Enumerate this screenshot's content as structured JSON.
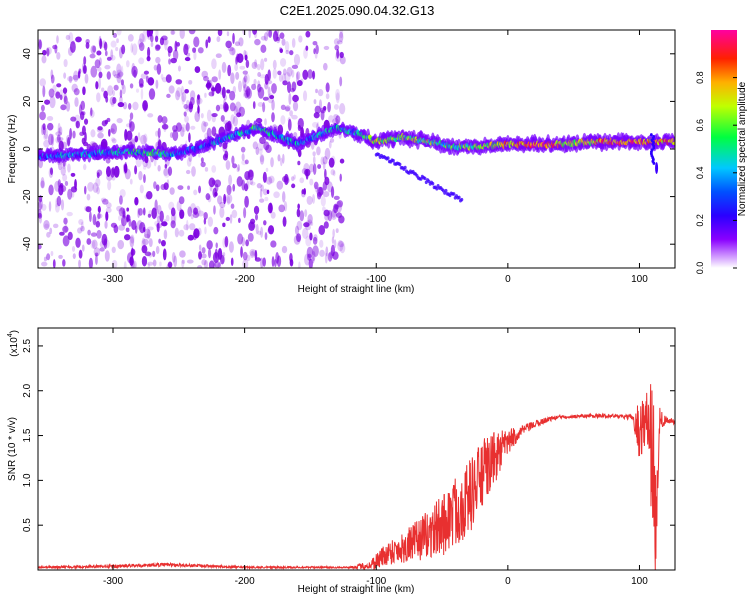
{
  "title": "C2E1.2025.090.04.32.G13",
  "colors": {
    "signal": "#7b00e0",
    "snr_line": "#e83030",
    "axis": "#000000"
  },
  "chart_data": [
    {
      "type": "heatmap",
      "xlabel": "Height of straight line (km)",
      "ylabel": "Frequency (Hz)",
      "xlim": [
        -357,
        127
      ],
      "ylim": [
        -50,
        50
      ],
      "xticks": [
        -300,
        -200,
        -100,
        0,
        100
      ],
      "xtick_labels": [
        "-300",
        "-200",
        "-100",
        "0",
        "100"
      ],
      "yticks": [
        -40,
        -20,
        0,
        20,
        40
      ],
      "ytick_labels": [
        "-40",
        "-20",
        "0",
        "20",
        "40"
      ],
      "colorbar": {
        "label": "Normalized spectral amplitude",
        "range": [
          0,
          1
        ],
        "ticks": [
          0.0,
          0.2,
          0.4,
          0.6,
          0.8
        ],
        "tick_labels": [
          "0.0",
          "0.2",
          "0.4",
          "0.6",
          "0.8"
        ],
        "colormap": "rainbow"
      },
      "noise_region_km": [
        -357,
        -125
      ],
      "signal_centerline": [
        {
          "x": -355,
          "y": -3,
          "amp": 0.3
        },
        {
          "x": -320,
          "y": -2,
          "amp": 0.35
        },
        {
          "x": -290,
          "y": -1,
          "amp": 0.45
        },
        {
          "x": -260,
          "y": -2,
          "amp": 0.45
        },
        {
          "x": -250,
          "y": -2,
          "amp": 0.25
        },
        {
          "x": -190,
          "y": 9,
          "amp": 0.45
        },
        {
          "x": -160,
          "y": 2,
          "amp": 0.35
        },
        {
          "x": -130,
          "y": 9,
          "amp": 0.35
        },
        {
          "x": -110,
          "y": 6,
          "amp": 0.45
        },
        {
          "x": -100,
          "y": 3,
          "amp": 0.65
        },
        {
          "x": -80,
          "y": 5,
          "amp": 0.55
        },
        {
          "x": -60,
          "y": 3,
          "amp": 0.6
        },
        {
          "x": -50,
          "y": 2,
          "amp": 0.5
        },
        {
          "x": -40,
          "y": 1,
          "amp": 0.55
        },
        {
          "x": -20,
          "y": 1,
          "amp": 0.6
        },
        {
          "x": 0,
          "y": 2,
          "amp": 0.75
        },
        {
          "x": 20,
          "y": 2,
          "amp": 0.9
        },
        {
          "x": 40,
          "y": 2,
          "amp": 0.75
        },
        {
          "x": 60,
          "y": 3,
          "amp": 0.65
        },
        {
          "x": 80,
          "y": 3,
          "amp": 0.85
        },
        {
          "x": 100,
          "y": 3,
          "amp": 0.8
        },
        {
          "x": 127,
          "y": 3,
          "amp": 0.75
        }
      ]
    },
    {
      "type": "line",
      "xlabel": "Height of straight line (km)",
      "ylabel": "SNR (10 * v/v)",
      "y_multiplier_label": "(x10",
      "y_multiplier_exp": "4",
      "y_multiplier_close": ")",
      "xlim": [
        -357,
        127
      ],
      "ylim": [
        0,
        2.7
      ],
      "xticks": [
        -300,
        -200,
        -100,
        0,
        100
      ],
      "xtick_labels": [
        "-300",
        "-200",
        "-100",
        "0",
        "100"
      ],
      "yticks": [
        0.5,
        1.0,
        1.5,
        2.0,
        2.5
      ],
      "ytick_labels": [
        "0.5",
        "1.0",
        "1.5",
        "2.0",
        "2.5"
      ],
      "series": [
        {
          "x": [
            -357,
            -300,
            -260,
            -200,
            -150,
            -120,
            -105,
            -100,
            -90,
            -80,
            -70,
            -60,
            -50,
            -40,
            -30,
            -20,
            -10,
            0,
            10,
            20,
            30,
            40,
            60,
            80,
            95,
            100,
            105,
            110,
            112,
            115,
            120,
            127
          ],
          "y": [
            0.03,
            0.04,
            0.06,
            0.03,
            0.03,
            0.03,
            0.05,
            0.1,
            0.2,
            0.25,
            0.32,
            0.4,
            0.5,
            0.65,
            0.8,
            1.05,
            1.25,
            1.42,
            1.55,
            1.62,
            1.68,
            1.71,
            1.72,
            1.72,
            1.7,
            1.55,
            1.7,
            1.5,
            0.4,
            1.65,
            1.68,
            1.65
          ],
          "noise": [
            0.01,
            0.02,
            0.02,
            0.01,
            0.01,
            0.01,
            0.05,
            0.1,
            0.14,
            0.18,
            0.22,
            0.28,
            0.35,
            0.4,
            0.42,
            0.4,
            0.3,
            0.15,
            0.06,
            0.04,
            0.03,
            0.02,
            0.02,
            0.02,
            0.03,
            0.35,
            0.3,
            0.6,
            0.45,
            0.15,
            0.04,
            0.03
          ]
        }
      ]
    }
  ]
}
